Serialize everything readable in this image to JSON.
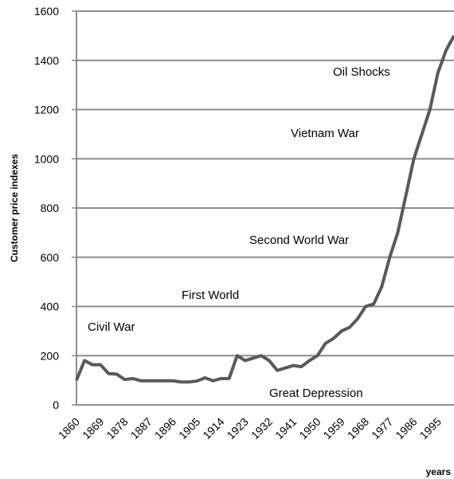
{
  "chart_data": {
    "type": "line",
    "y_label": "Customer price indexes",
    "x_label": "years",
    "annotations": [
      "Civil War",
      "First World",
      "Second World War",
      "Vietnam War",
      "Oil Shocks",
      "Great Depression"
    ],
    "x": [
      1860,
      1863,
      1866,
      1869,
      1872,
      1875,
      1878,
      1881,
      1884,
      1887,
      1890,
      1893,
      1896,
      1899,
      1902,
      1905,
      1908,
      1911,
      1914,
      1917,
      1920,
      1923,
      1926,
      1929,
      1932,
      1935,
      1938,
      1941,
      1944,
      1947,
      1950,
      1953,
      1956,
      1959,
      1962,
      1965,
      1968,
      1971,
      1974,
      1977,
      1980,
      1983,
      1986,
      1989,
      1992,
      1995,
      1998,
      2001
    ],
    "series": [
      {
        "name": "CPI",
        "color": "#595959",
        "values": [
          100,
          180,
          163,
          163,
          127,
          125,
          103,
          107,
          98,
          98,
          98,
          98,
          98,
          93,
          93,
          97,
          110,
          98,
          107,
          107,
          200,
          180,
          190,
          200,
          180,
          140,
          150,
          160,
          155,
          180,
          200,
          250,
          270,
          300,
          315,
          350,
          400,
          410,
          480,
          600,
          700,
          850,
          1000,
          1100,
          1200,
          1350,
          1440,
          1500
        ]
      }
    ],
    "xlim": [
      1860,
      2001
    ],
    "xticks": [
      1860,
      1869,
      1878,
      1887,
      1896,
      1905,
      1914,
      1923,
      1932,
      1941,
      1950,
      1959,
      1968,
      1977,
      1986,
      1995
    ],
    "ylim": [
      0,
      1600
    ],
    "yticks": [
      0,
      200,
      400,
      600,
      800,
      1000,
      1200,
      1400,
      1600
    ],
    "grid": true
  }
}
